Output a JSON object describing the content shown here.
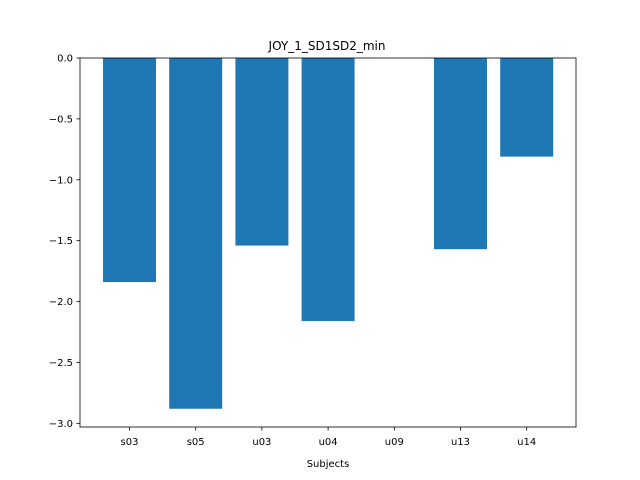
{
  "chart_data": {
    "type": "bar",
    "title": "JOY_1_SD1SD2_min",
    "xlabel": "Subjects",
    "ylabel": "",
    "categories": [
      "s03",
      "s05",
      "u03",
      "u04",
      "u09",
      "u13",
      "u14"
    ],
    "values": [
      -1.84,
      -2.88,
      -1.54,
      -2.16,
      0.0,
      -1.57,
      -0.81
    ],
    "ylim": [
      -3.03,
      0.0
    ],
    "yticks": [
      0.0,
      -0.5,
      -1.0,
      -1.5,
      -2.0,
      -2.5,
      -3.0
    ],
    "ytick_labels": [
      "0.0",
      "−0.5",
      "−1.0",
      "−1.5",
      "−2.0",
      "−2.5",
      "−3.0"
    ],
    "bar_color": "#1f77b4",
    "grid": false,
    "legend": "none"
  }
}
